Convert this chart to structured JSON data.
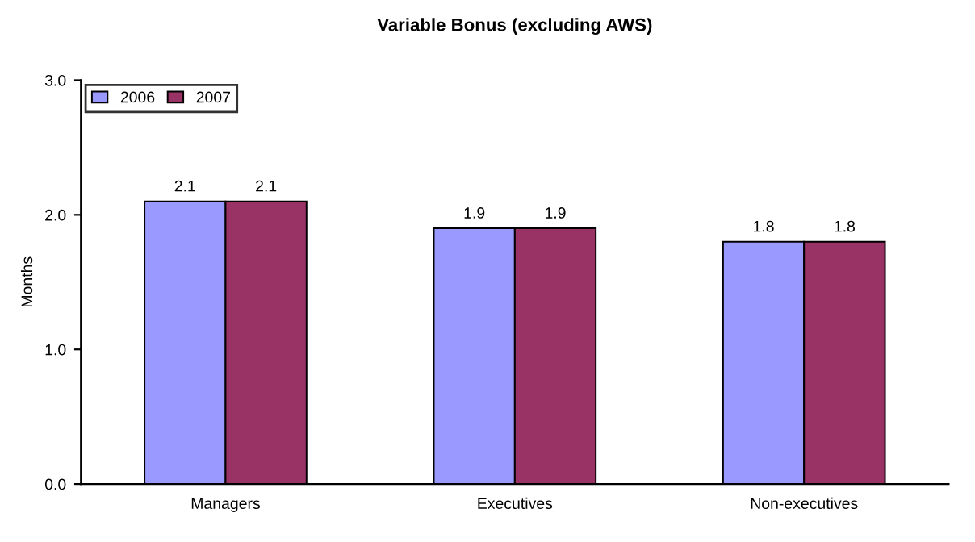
{
  "chart_data": {
    "type": "bar",
    "title": "Variable Bonus (excluding AWS)",
    "ylabel": "Months",
    "categories": [
      "Managers",
      "Executives",
      "Non-executives"
    ],
    "series": [
      {
        "name": "2006",
        "color": "#9999ff",
        "values": [
          2.1,
          1.9,
          1.8
        ]
      },
      {
        "name": "2007",
        "color": "#993366",
        "values": [
          2.1,
          1.9,
          1.8
        ]
      }
    ],
    "ylim": [
      0,
      3
    ],
    "yticks": [
      {
        "value": 0,
        "label": "0.0"
      },
      {
        "value": 1,
        "label": "1.0"
      },
      {
        "value": 2,
        "label": "2.0"
      },
      {
        "value": 3,
        "label": "3.0"
      }
    ],
    "data_labels": true,
    "legend": "top left",
    "grid": false
  }
}
